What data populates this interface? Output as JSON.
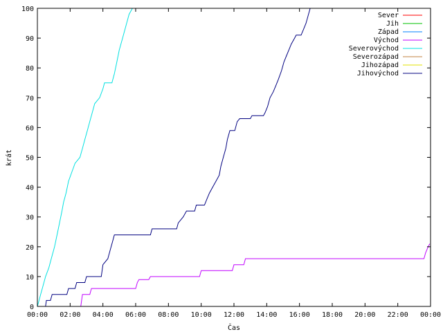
{
  "chart_data": {
    "type": "line",
    "xlabel": "Čas",
    "ylabel": "krát",
    "xlim": [
      0,
      24
    ],
    "ylim": [
      0,
      100
    ],
    "x_ticks": [
      {
        "v": 0,
        "label": "00:00"
      },
      {
        "v": 2,
        "label": "02:00"
      },
      {
        "v": 4,
        "label": "04:00"
      },
      {
        "v": 6,
        "label": "06:00"
      },
      {
        "v": 8,
        "label": "08:00"
      },
      {
        "v": 10,
        "label": "10:00"
      },
      {
        "v": 12,
        "label": "12:00"
      },
      {
        "v": 14,
        "label": "14:00"
      },
      {
        "v": 16,
        "label": "16:00"
      },
      {
        "v": 18,
        "label": "18:00"
      },
      {
        "v": 20,
        "label": "20:00"
      },
      {
        "v": 22,
        "label": "22:00"
      },
      {
        "v": 24,
        "label": "00:00"
      }
    ],
    "y_ticks": [
      {
        "v": 0,
        "label": "0"
      },
      {
        "v": 10,
        "label": "10"
      },
      {
        "v": 20,
        "label": "20"
      },
      {
        "v": 30,
        "label": "30"
      },
      {
        "v": 40,
        "label": "40"
      },
      {
        "v": 50,
        "label": "50"
      },
      {
        "v": 60,
        "label": "60"
      },
      {
        "v": 70,
        "label": "70"
      },
      {
        "v": 80,
        "label": "80"
      },
      {
        "v": 90,
        "label": "90"
      },
      {
        "v": 100,
        "label": "100"
      }
    ],
    "grid": false,
    "legend_position": "top-right",
    "series": [
      {
        "name": "Sever",
        "color": "#ff0000",
        "points": []
      },
      {
        "name": "Jih",
        "color": "#00c000",
        "points": []
      },
      {
        "name": "Západ",
        "color": "#0080ff",
        "points": []
      },
      {
        "name": "Východ",
        "color": "#c000ff",
        "points": [
          [
            2.65,
            0
          ],
          [
            2.7,
            2
          ],
          [
            2.75,
            4
          ],
          [
            3.2,
            4
          ],
          [
            3.3,
            6
          ],
          [
            6.0,
            6
          ],
          [
            6.1,
            8
          ],
          [
            6.2,
            9
          ],
          [
            6.8,
            9
          ],
          [
            6.9,
            10
          ],
          [
            9.9,
            10
          ],
          [
            10.0,
            12
          ],
          [
            11.9,
            12
          ],
          [
            12.0,
            14
          ],
          [
            12.6,
            14
          ],
          [
            12.7,
            16
          ],
          [
            23.6,
            16
          ],
          [
            23.7,
            18
          ],
          [
            23.85,
            20
          ],
          [
            23.95,
            21
          ]
        ]
      },
      {
        "name": "Severovýchod",
        "color": "#00e0e0",
        "points": [
          [
            0.0,
            0
          ],
          [
            0.1,
            2
          ],
          [
            0.2,
            4
          ],
          [
            0.35,
            7
          ],
          [
            0.5,
            10
          ],
          [
            0.7,
            13
          ],
          [
            0.85,
            16
          ],
          [
            1.05,
            20
          ],
          [
            1.2,
            24
          ],
          [
            1.35,
            28
          ],
          [
            1.5,
            32
          ],
          [
            1.6,
            35
          ],
          [
            1.75,
            38
          ],
          [
            1.9,
            42
          ],
          [
            2.1,
            45
          ],
          [
            2.3,
            48
          ],
          [
            2.6,
            50
          ],
          [
            2.75,
            53
          ],
          [
            2.9,
            56
          ],
          [
            3.05,
            59
          ],
          [
            3.2,
            62
          ],
          [
            3.35,
            65
          ],
          [
            3.5,
            68
          ],
          [
            3.8,
            70
          ],
          [
            4.0,
            73
          ],
          [
            4.1,
            75
          ],
          [
            4.55,
            75
          ],
          [
            4.7,
            78
          ],
          [
            4.85,
            82
          ],
          [
            5.0,
            86
          ],
          [
            5.2,
            90
          ],
          [
            5.4,
            94
          ],
          [
            5.6,
            98
          ],
          [
            5.8,
            100
          ]
        ]
      },
      {
        "name": "Severozápad",
        "color": "#c08040",
        "points": []
      },
      {
        "name": "Jihozápad",
        "color": "#e0e000",
        "points": []
      },
      {
        "name": "Jihovýchod",
        "color": "#000080",
        "points": [
          [
            0.5,
            0
          ],
          [
            0.55,
            2
          ],
          [
            0.8,
            2
          ],
          [
            0.9,
            4
          ],
          [
            1.8,
            4
          ],
          [
            1.9,
            6
          ],
          [
            2.3,
            6
          ],
          [
            2.4,
            8
          ],
          [
            2.9,
            8
          ],
          [
            3.0,
            10
          ],
          [
            3.9,
            10
          ],
          [
            4.0,
            14
          ],
          [
            4.3,
            16
          ],
          [
            4.45,
            19
          ],
          [
            4.6,
            22
          ],
          [
            4.7,
            24
          ],
          [
            6.9,
            24
          ],
          [
            7.0,
            26
          ],
          [
            8.5,
            26
          ],
          [
            8.6,
            28
          ],
          [
            8.9,
            30
          ],
          [
            9.1,
            32
          ],
          [
            9.6,
            32
          ],
          [
            9.7,
            34
          ],
          [
            10.2,
            34
          ],
          [
            10.35,
            36
          ],
          [
            10.5,
            38
          ],
          [
            10.7,
            40
          ],
          [
            10.9,
            42
          ],
          [
            11.1,
            44
          ],
          [
            11.2,
            47
          ],
          [
            11.35,
            50
          ],
          [
            11.5,
            53
          ],
          [
            11.6,
            56
          ],
          [
            11.75,
            59
          ],
          [
            12.05,
            59
          ],
          [
            12.2,
            62
          ],
          [
            12.35,
            63
          ],
          [
            13.0,
            63
          ],
          [
            13.1,
            64
          ],
          [
            13.8,
            64
          ],
          [
            13.9,
            65
          ],
          [
            14.05,
            67
          ],
          [
            14.2,
            70
          ],
          [
            14.4,
            72
          ],
          [
            14.55,
            74
          ],
          [
            14.7,
            76
          ],
          [
            14.9,
            79
          ],
          [
            15.05,
            82
          ],
          [
            15.2,
            84
          ],
          [
            15.35,
            86
          ],
          [
            15.5,
            88
          ],
          [
            15.7,
            90
          ],
          [
            15.8,
            91
          ],
          [
            16.1,
            91
          ],
          [
            16.25,
            93
          ],
          [
            16.4,
            95
          ],
          [
            16.55,
            98
          ],
          [
            16.65,
            100
          ]
        ]
      }
    ]
  }
}
